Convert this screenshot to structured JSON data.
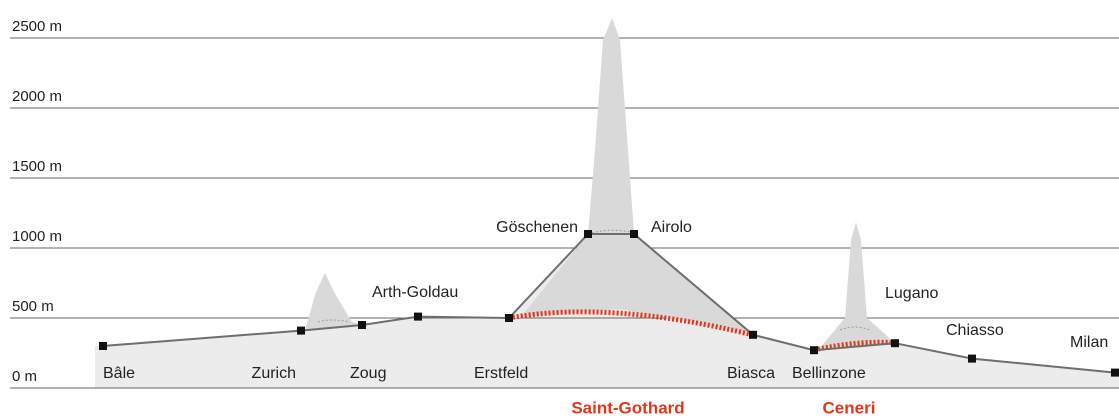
{
  "chart_data": {
    "type": "line",
    "categories": [
      "Bâle",
      "Zurich",
      "Zoug",
      "Arth-Goldau",
      "Erstfeld",
      "Göschenen",
      "Airolo",
      "Biasca",
      "Bellinzone",
      "Lugano",
      "Chiasso",
      "Milan"
    ],
    "values": [
      300,
      410,
      450,
      510,
      500,
      1100,
      1100,
      380,
      270,
      320,
      210,
      110
    ],
    "color": "#6e6e6e",
    "ylim": [
      0,
      2500
    ],
    "yticks": [
      {
        "value": 0,
        "label": "0 m"
      },
      {
        "value": 500,
        "label": "500 m"
      },
      {
        "value": 1000,
        "label": "1000 m"
      },
      {
        "value": 1500,
        "label": "1500 m"
      },
      {
        "value": 2000,
        "label": "2000 m"
      },
      {
        "value": 2500,
        "label": "2500 m"
      }
    ],
    "grid": true,
    "annotations": [
      "Saint-Gothard",
      "Ceneri"
    ]
  }
}
